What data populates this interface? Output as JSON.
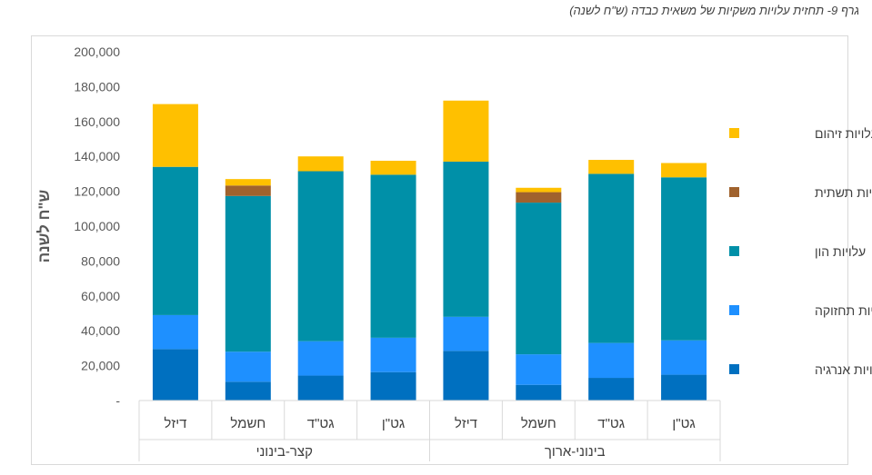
{
  "caption": "גרף 9- תחזית עלויות משקיות של משאית כבדה (ש\"ח לשנה)",
  "chart_data": {
    "type": "bar",
    "stacked": true,
    "title": "",
    "ylabel": "ש\"ח לשנה",
    "ylim": [
      0,
      200000
    ],
    "y_ticks": [
      "-",
      "20,000",
      "40,000",
      "60,000",
      "80,000",
      "100,000",
      "120,000",
      "140,000",
      "160,000",
      "180,000",
      "200,000"
    ],
    "categories": [
      "דיזל",
      "חשמל",
      "גט\"ד",
      "גט\"ן",
      "דיזל",
      "חשמל",
      "גט\"ד",
      "גט\"ן"
    ],
    "groups": [
      {
        "label": "קצר-בינוני",
        "count": 4
      },
      {
        "label": "בינוני-ארוך",
        "count": 4
      }
    ],
    "legend_position": "right",
    "series": [
      {
        "name": "עלויות אנרגיה",
        "color": "#0070c0",
        "values": [
          29500,
          10800,
          14300,
          16300,
          28500,
          9000,
          13000,
          14800
        ]
      },
      {
        "name": "עלויות תחזוקה",
        "color": "#1e90ff",
        "values": [
          19500,
          17200,
          19700,
          19700,
          19500,
          17500,
          20000,
          19700
        ]
      },
      {
        "name": "עלויות הון",
        "color": "#0090a8",
        "values": [
          85000,
          89300,
          97500,
          93500,
          89000,
          87000,
          97000,
          93500
        ]
      },
      {
        "name": "עלויות תשתית",
        "color": "#a0622d",
        "values": [
          0,
          6000,
          0,
          0,
          0,
          6000,
          0,
          0
        ]
      },
      {
        "name": "עלויות זיהום",
        "color": "#ffc000",
        "values": [
          36000,
          3700,
          8500,
          8000,
          35000,
          2500,
          8000,
          8200
        ]
      }
    ]
  }
}
